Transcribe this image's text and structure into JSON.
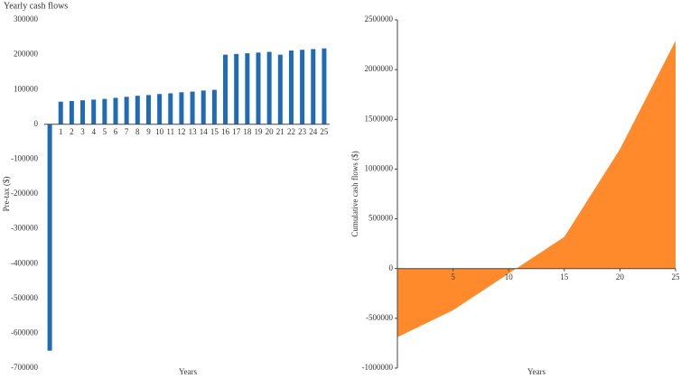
{
  "chart_data": [
    {
      "type": "bar",
      "title": "Yearly cash flows",
      "y_label": "Pre-tax ($)",
      "x_label": "Years",
      "categories": [
        null,
        "1",
        "2",
        "3",
        "4",
        "5",
        "6",
        "7",
        "8",
        "9",
        "10",
        "11",
        "12",
        "13",
        "14",
        "15",
        "16",
        "17",
        "18",
        "19",
        "20",
        "21",
        "22",
        "23",
        "24",
        "25"
      ],
      "values": [
        -650000,
        65000,
        67000,
        69000,
        71000,
        73000,
        76000,
        79000,
        82000,
        84000,
        87000,
        89000,
        92000,
        94000,
        97000,
        99000,
        200000,
        202000,
        204000,
        206000,
        208000,
        200000,
        212000,
        214000,
        216000,
        218000
      ],
      "color": "#1f6bb5",
      "ylim": [
        -700000,
        300000
      ],
      "yticks": [
        -700000,
        -600000,
        -500000,
        -400000,
        -300000,
        -200000,
        -100000,
        0,
        100000,
        200000,
        300000
      ]
    },
    {
      "type": "area",
      "y_label": "Cumulative cash flows ($)",
      "x_label": "Years",
      "x": [
        0,
        5,
        10,
        15,
        20,
        25
      ],
      "values": [
        -690000,
        -418000,
        -50000,
        318000,
        1200000,
        2290000
      ],
      "color": "#ff8a2b",
      "xlim": [
        0,
        25
      ],
      "xticks": [
        5,
        10,
        15,
        20,
        25
      ],
      "ylim": [
        -1000000,
        2500000
      ],
      "yticks": [
        -1000000,
        -500000,
        0,
        500000,
        1000000,
        1500000,
        2000000,
        2500000
      ]
    }
  ]
}
